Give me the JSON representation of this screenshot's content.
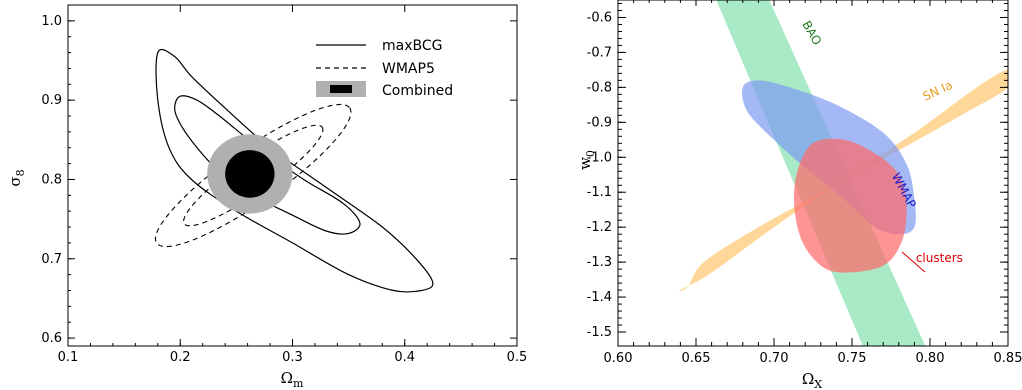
{
  "chart_data": [
    {
      "type": "contour",
      "title": "",
      "xlabel_main": "Ω",
      "xlabel_sub": "m",
      "ylabel_main": "σ",
      "ylabel_sub": "8",
      "xlim": [
        0.1,
        0.5
      ],
      "ylim": [
        0.59,
        1.02
      ],
      "xticks": [
        "0.1",
        "0.2",
        "0.3",
        "0.4",
        "0.5"
      ],
      "yticks": [
        "0.6",
        "0.7",
        "0.8",
        "0.9",
        "1.0"
      ],
      "xtick_values": [
        0.1,
        0.2,
        0.3,
        0.4,
        0.5
      ],
      "ytick_values": [
        0.6,
        0.7,
        0.8,
        0.9,
        1.0
      ],
      "legend_position": "top-right",
      "legend": [
        {
          "label": "maxBCG",
          "style": "solid"
        },
        {
          "label": "WMAP5",
          "style": "dashed"
        },
        {
          "label": "Combined",
          "style": "filled"
        }
      ],
      "contours": {
        "maxbcg_outer": [
          [
            0.18,
            0.96
          ],
          [
            0.195,
            0.955
          ],
          [
            0.21,
            0.93
          ],
          [
            0.24,
            0.89
          ],
          [
            0.28,
            0.84
          ],
          [
            0.33,
            0.79
          ],
          [
            0.38,
            0.74
          ],
          [
            0.41,
            0.7
          ],
          [
            0.425,
            0.67
          ],
          [
            0.415,
            0.66
          ],
          [
            0.39,
            0.66
          ],
          [
            0.35,
            0.68
          ],
          [
            0.3,
            0.72
          ],
          [
            0.25,
            0.76
          ],
          [
            0.21,
            0.8
          ],
          [
            0.19,
            0.84
          ],
          [
            0.18,
            0.9
          ]
        ],
        "maxbcg_inner": [
          [
            0.2,
            0.905
          ],
          [
            0.215,
            0.9
          ],
          [
            0.235,
            0.88
          ],
          [
            0.27,
            0.84
          ],
          [
            0.31,
            0.8
          ],
          [
            0.345,
            0.77
          ],
          [
            0.36,
            0.745
          ],
          [
            0.35,
            0.732
          ],
          [
            0.33,
            0.735
          ],
          [
            0.3,
            0.755
          ],
          [
            0.265,
            0.78
          ],
          [
            0.235,
            0.81
          ],
          [
            0.215,
            0.84
          ],
          [
            0.2,
            0.87
          ],
          [
            0.195,
            0.89
          ]
        ],
        "wmap5_outer": {
          "center": [
            0.265,
            0.805
          ],
          "rx": 0.105,
          "ry": 0.075,
          "tilt_deg": 35
        },
        "wmap5_inner": {
          "center": [
            0.265,
            0.805
          ],
          "rx": 0.075,
          "ry": 0.048,
          "tilt_deg": 35
        },
        "combined_outer": {
          "center": [
            0.262,
            0.807
          ],
          "rx": 0.038,
          "ry": 0.05
        },
        "combined_inner": {
          "center": [
            0.262,
            0.807
          ],
          "rx": 0.022,
          "ry": 0.03
        }
      }
    },
    {
      "type": "contour",
      "title": "",
      "xlabel_main": "Ω",
      "xlabel_sub": "X",
      "ylabel_main": "w",
      "ylabel_sub": "0",
      "xlim": [
        0.6,
        0.85
      ],
      "ylim": [
        -1.54,
        -0.55
      ],
      "xticks": [
        "0.60",
        "0.65",
        "0.70",
        "0.75",
        "0.80",
        "0.85"
      ],
      "yticks": [
        "-0.6",
        "-0.7",
        "-0.8",
        "-0.9",
        "-1.0",
        "-1.1",
        "-1.2",
        "-1.3",
        "-1.4",
        "-1.5"
      ],
      "xtick_values": [
        0.6,
        0.65,
        0.7,
        0.75,
        0.8,
        0.85
      ],
      "ytick_values": [
        -0.6,
        -0.7,
        -0.8,
        -0.9,
        -1.0,
        -1.1,
        -1.2,
        -1.3,
        -1.4,
        -1.5
      ],
      "annotations": [
        {
          "text": "BAO",
          "color": "#1f7a1f",
          "at": [
            0.722,
            -0.65
          ],
          "rotate": 60
        },
        {
          "text": "SN Ia",
          "color": "#e8a020",
          "at": [
            0.806,
            -0.82
          ],
          "rotate": -25
        },
        {
          "text": "WMAP",
          "color": "#1a1acc",
          "at": [
            0.781,
            -1.1
          ],
          "rotate": 62
        },
        {
          "text": "clusters",
          "color": "#e00000",
          "at": [
            0.806,
            -1.3
          ],
          "rotate": 0
        }
      ],
      "regions": [
        {
          "name": "BAO",
          "color": "#9ee8c0",
          "polygon": [
            [
              0.663,
              -0.55
            ],
            [
              0.697,
              -0.55
            ],
            [
              0.797,
              -1.54
            ],
            [
              0.757,
              -1.54
            ]
          ]
        },
        {
          "name": "SN Ia",
          "color": "#ffc870",
          "polygon": [
            [
              0.64,
              -1.38
            ],
            [
              0.66,
              -1.33
            ],
            [
              0.7,
              -1.2
            ],
            [
              0.745,
              -1.06
            ],
            [
              0.79,
              -0.93
            ],
            [
              0.83,
              -0.8
            ],
            [
              0.85,
              -0.75
            ],
            [
              0.85,
              -0.8
            ],
            [
              0.82,
              -0.88
            ],
            [
              0.78,
              -0.98
            ],
            [
              0.735,
              -1.09
            ],
            [
              0.69,
              -1.2
            ],
            [
              0.655,
              -1.3
            ],
            [
              0.645,
              -1.37
            ]
          ]
        },
        {
          "name": "WMAP",
          "color": "#7f9cf0",
          "polygon": [
            [
              0.68,
              -0.8
            ],
            [
              0.69,
              -0.78
            ],
            [
              0.71,
              -0.8
            ],
            [
              0.74,
              -0.85
            ],
            [
              0.77,
              -0.93
            ],
            [
              0.785,
              -1.02
            ],
            [
              0.79,
              -1.12
            ],
            [
              0.79,
              -1.2
            ],
            [
              0.78,
              -1.22
            ],
            [
              0.765,
              -1.2
            ],
            [
              0.745,
              -1.12
            ],
            [
              0.72,
              -1.03
            ],
            [
              0.7,
              -0.95
            ],
            [
              0.683,
              -0.87
            ]
          ]
        },
        {
          "name": "clusters",
          "color": "#ff6b6b",
          "polygon": [
            [
              0.725,
              -0.96
            ],
            [
              0.745,
              -0.95
            ],
            [
              0.765,
              -0.99
            ],
            [
              0.78,
              -1.05
            ],
            [
              0.785,
              -1.14
            ],
            [
              0.782,
              -1.24
            ],
            [
              0.77,
              -1.31
            ],
            [
              0.745,
              -1.33
            ],
            [
              0.73,
              -1.31
            ],
            [
              0.718,
              -1.24
            ],
            [
              0.713,
              -1.14
            ],
            [
              0.715,
              -1.04
            ]
          ]
        }
      ]
    }
  ]
}
